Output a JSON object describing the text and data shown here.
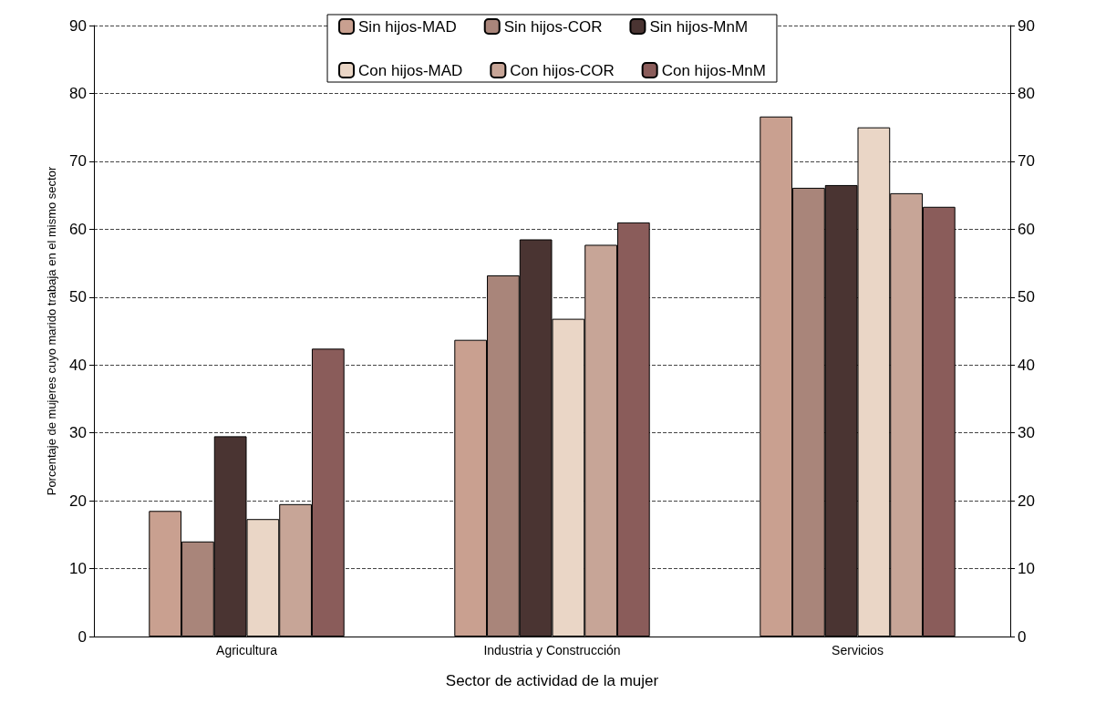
{
  "chart_data": {
    "type": "bar",
    "xlabel": "Sector de actividad de la mujer",
    "ylabel": "Porcentaje de mujeres cuyo marido trabaja en el mismo sector",
    "categories": [
      "Agricultura",
      "Industria y Construcción",
      "Servicios"
    ],
    "series": [
      {
        "name": "Sin hijos-MAD",
        "color": "#c9a090",
        "values": [
          18.5,
          43.7,
          76.6
        ]
      },
      {
        "name": "Sin hijos-COR",
        "color": "#a9857a",
        "values": [
          14,
          53.2,
          66.1
        ]
      },
      {
        "name": "Sin hijos-MnM",
        "color": "#4a3432",
        "values": [
          29.5,
          58.5,
          66.5
        ]
      },
      {
        "name": "Con hijos-MAD",
        "color": "#ead6c6",
        "values": [
          17.3,
          46.8,
          75
        ]
      },
      {
        "name": "Con hijos-COR",
        "color": "#c7a597",
        "values": [
          19.5,
          57.7,
          65.3
        ]
      },
      {
        "name": "Con hijos-MnM",
        "color": "#8a5c5a",
        "values": [
          42.4,
          61,
          63.3
        ]
      }
    ],
    "ylim": [
      0,
      90
    ],
    "yticks": [
      0,
      10,
      20,
      30,
      40,
      50,
      60,
      70,
      80,
      90
    ],
    "y2lim": [
      0,
      90
    ],
    "y2ticks": [
      0,
      10,
      20,
      30,
      40,
      50,
      60,
      70,
      80,
      90
    ],
    "grid": "y",
    "legend": "top"
  }
}
